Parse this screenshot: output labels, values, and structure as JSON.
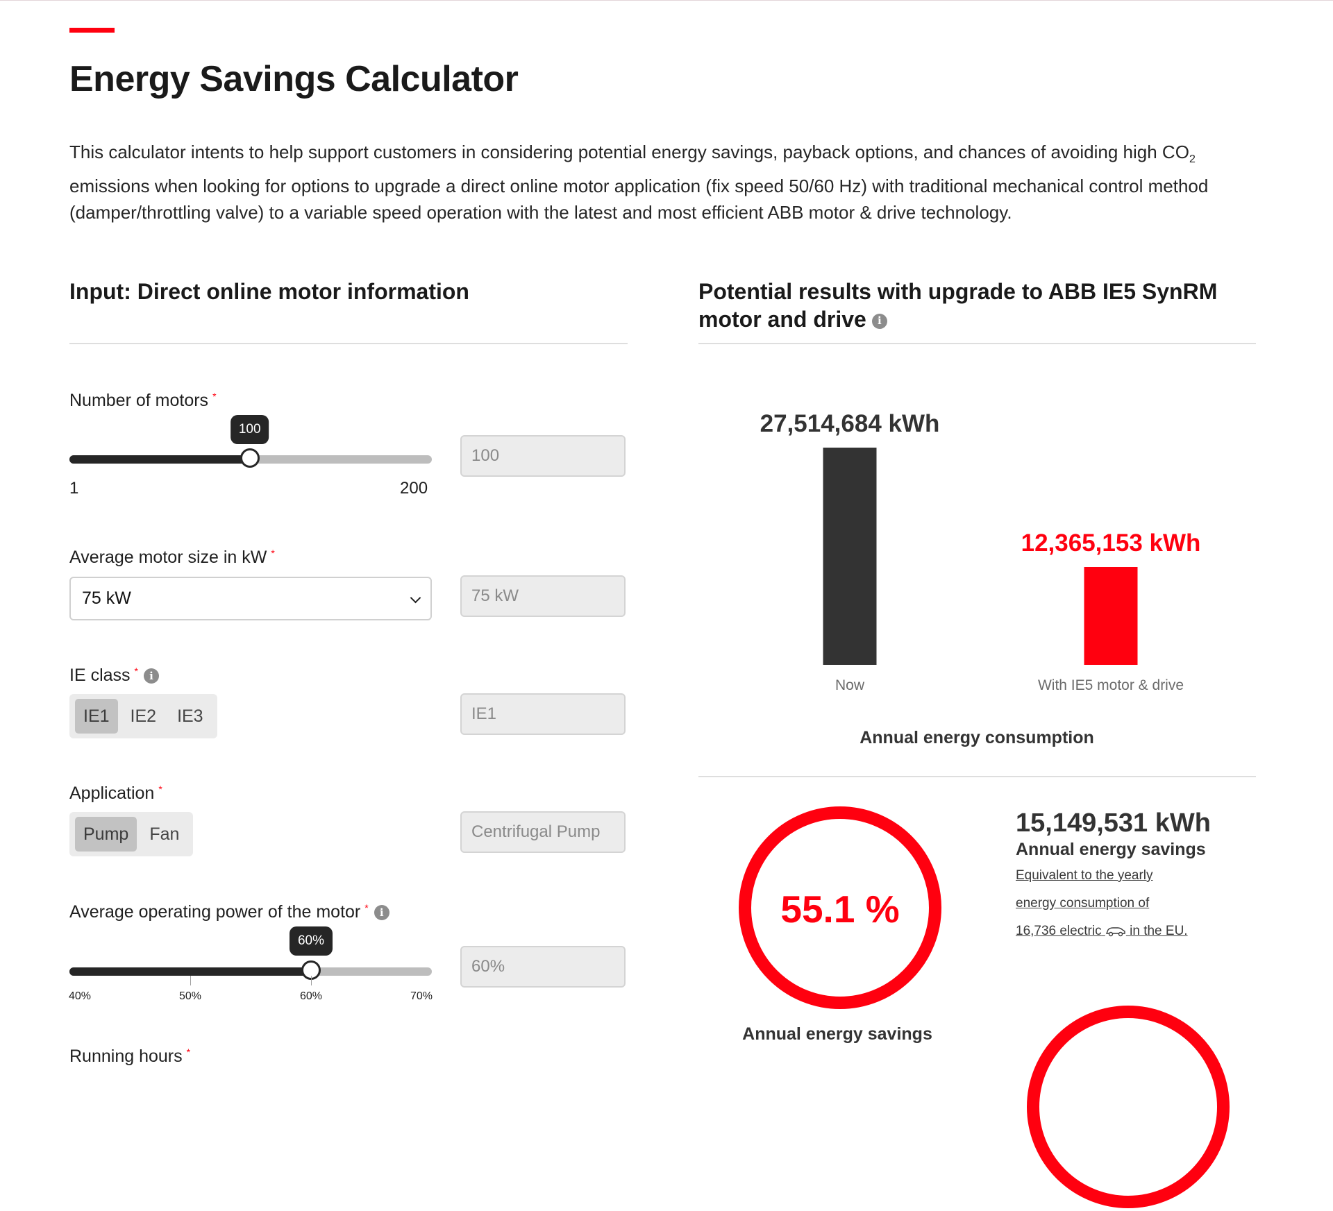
{
  "page": {
    "title": "Energy Savings Calculator",
    "intro_part1": "This calculator intents to help support customers in considering potential energy savings, payback options, and chances of avoiding high CO",
    "intro_sub": "2",
    "intro_part2": " emissions when looking for options to upgrade a direct online motor application (fix speed 50/60 Hz) with traditional mechanical control method (damper/throttling valve) to a variable speed operation with the latest and most efficient ABB motor & drive technology."
  },
  "input_section": {
    "heading": "Input: Direct online motor information",
    "num_motors": {
      "label": "Number of motors",
      "required_mark": "*",
      "value": 100,
      "min": 1,
      "max": 200,
      "value_text": "100",
      "min_text": "1",
      "max_text": "200",
      "readonly_value": "100"
    },
    "motor_size": {
      "label": "Average motor size in kW",
      "required_mark": "*",
      "selected": "75 kW",
      "readonly_value": "75 kW"
    },
    "ie_class": {
      "label": "IE class",
      "required_mark": "*",
      "options": [
        "IE1",
        "IE2",
        "IE3"
      ],
      "selected_index": 0,
      "readonly_value": "IE1"
    },
    "application": {
      "label": "Application",
      "required_mark": "*",
      "options": [
        "Pump",
        "Fan"
      ],
      "selected_index": 0,
      "readonly_value": "Centrifugal Pump"
    },
    "operating_power": {
      "label": "Average operating power of the motor",
      "required_mark": "*",
      "value": 60,
      "min": 40,
      "max": 70,
      "value_text": "60%",
      "ticks": [
        "40%",
        "50%",
        "60%",
        "70%"
      ],
      "tick_values": [
        40,
        50,
        60,
        70
      ],
      "readonly_value": "60%"
    },
    "running_hours": {
      "label": "Running hours",
      "required_mark": "*"
    }
  },
  "results_section": {
    "heading_line1": "Potential results with upgrade to ABB IE5 SynRM",
    "heading_line2": "motor and drive",
    "annual_chart": {
      "caption": "Annual energy consumption",
      "max_value": 27514684
    },
    "savings": {
      "percent": 55.1,
      "percent_text": "55.1 %",
      "ring_caption": "Annual energy savings",
      "kwh_text": "15,149,531 kWh",
      "heading": "Annual energy savings",
      "equiv_line1": "Equivalent to the yearly",
      "equiv_line2": "energy consumption of",
      "equiv_count": "16,736 electric",
      "equiv_suffix": " in the EU."
    }
  },
  "colors": {
    "accent": "#ff000f",
    "dark": "#333333",
    "track": "#bdbdbd"
  },
  "icons": {
    "info": "info-icon",
    "select": "chevron-down-icon",
    "car": "car-icon"
  },
  "chart_data": {
    "type": "bar",
    "categories": [
      "Now",
      "With IE5 motor & drive"
    ],
    "values": [
      27514684,
      12365153
    ],
    "value_labels": [
      "27,514,684 kWh",
      "12,365,153 kWh"
    ],
    "colors": [
      "#333333",
      "#ff000f"
    ],
    "title": "Annual energy consumption",
    "xlabel": "",
    "ylabel": ""
  }
}
